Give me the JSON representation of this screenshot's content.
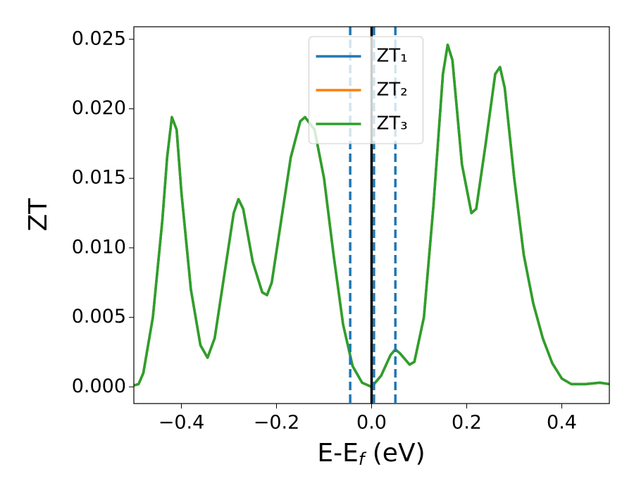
{
  "chart_data": {
    "type": "line",
    "xlabel": [
      "E-E",
      "f",
      " (eV)"
    ],
    "ylabel": "ZT",
    "xlim": [
      -0.5,
      0.5
    ],
    "ylim": [
      -0.0012,
      0.0259
    ],
    "xticks": [
      {
        "value": -0.4,
        "label": "−0.4"
      },
      {
        "value": -0.2,
        "label": "−0.2"
      },
      {
        "value": 0,
        "label": "0.0"
      },
      0.2,
      0.4
    ],
    "yticks": [
      {
        "value": 0,
        "label": "0.000"
      },
      0.005,
      {
        "value": 0.01,
        "label": "0.010"
      },
      0.015,
      {
        "value": 0.02,
        "label": "0.020"
      },
      0.025
    ],
    "legend": "upper center",
    "x": [
      -0.5,
      -0.49,
      -0.48,
      -0.46,
      -0.44,
      -0.43,
      -0.42,
      -0.41,
      -0.4,
      -0.38,
      -0.36,
      -0.345,
      -0.33,
      -0.31,
      -0.29,
      -0.28,
      -0.27,
      -0.25,
      -0.23,
      -0.22,
      -0.21,
      -0.19,
      -0.17,
      -0.15,
      -0.14,
      -0.12,
      -0.1,
      -0.08,
      -0.06,
      -0.04,
      -0.02,
      0,
      0.02,
      0.04,
      0.05,
      0.06,
      0.08,
      0.09,
      0.11,
      0.13,
      0.15,
      0.16,
      0.17,
      0.19,
      0.21,
      0.22,
      0.24,
      0.26,
      0.27,
      0.28,
      0.3,
      0.32,
      0.34,
      0.36,
      0.38,
      0.4,
      0.42,
      0.45,
      0.48,
      0.5
    ],
    "series": [
      {
        "name": "ZT₁",
        "color": "#1f77b4",
        "values": [
          0.0001,
          0.0002,
          0.001,
          0.005,
          0.012,
          0.0165,
          0.0194,
          0.0185,
          0.014,
          0.007,
          0.003,
          0.0021,
          0.0035,
          0.008,
          0.0125,
          0.0135,
          0.0128,
          0.009,
          0.0068,
          0.0066,
          0.0075,
          0.012,
          0.0165,
          0.0191,
          0.0194,
          0.0185,
          0.015,
          0.0095,
          0.0045,
          0.0015,
          0.0003,
          0,
          0.0008,
          0.0023,
          0.0027,
          0.0024,
          0.0016,
          0.0018,
          0.005,
          0.013,
          0.0225,
          0.0246,
          0.0235,
          0.016,
          0.0125,
          0.0128,
          0.0175,
          0.0225,
          0.023,
          0.0215,
          0.015,
          0.0095,
          0.006,
          0.0035,
          0.0017,
          0.0006,
          0.0002,
          0.0002,
          0.0003,
          0.0002
        ]
      },
      {
        "name": "ZT₂",
        "color": "#ff7f0e",
        "values": [
          0.0001,
          0.0002,
          0.001,
          0.005,
          0.012,
          0.0165,
          0.0194,
          0.0185,
          0.014,
          0.007,
          0.003,
          0.0021,
          0.0035,
          0.008,
          0.0125,
          0.0135,
          0.0128,
          0.009,
          0.0068,
          0.0066,
          0.0075,
          0.012,
          0.0165,
          0.0191,
          0.0194,
          0.0185,
          0.015,
          0.0095,
          0.0045,
          0.0015,
          0.0003,
          0,
          0.0008,
          0.0023,
          0.0027,
          0.0024,
          0.0016,
          0.0018,
          0.005,
          0.013,
          0.0225,
          0.0246,
          0.0235,
          0.016,
          0.0125,
          0.0128,
          0.0175,
          0.0225,
          0.023,
          0.0215,
          0.015,
          0.0095,
          0.006,
          0.0035,
          0.0017,
          0.0006,
          0.0002,
          0.0002,
          0.0003,
          0.0002
        ]
      },
      {
        "name": "ZT₃",
        "color": "#2ca02c",
        "values": [
          0.0001,
          0.0002,
          0.001,
          0.005,
          0.012,
          0.0165,
          0.0194,
          0.0185,
          0.014,
          0.007,
          0.003,
          0.0021,
          0.0035,
          0.008,
          0.0125,
          0.0135,
          0.0128,
          0.009,
          0.0068,
          0.0066,
          0.0075,
          0.012,
          0.0165,
          0.0191,
          0.0194,
          0.0185,
          0.015,
          0.0095,
          0.0045,
          0.0015,
          0.0003,
          0,
          0.0008,
          0.0023,
          0.0027,
          0.0024,
          0.0016,
          0.0018,
          0.005,
          0.013,
          0.0225,
          0.0246,
          0.0235,
          0.016,
          0.0125,
          0.0128,
          0.0175,
          0.0225,
          0.023,
          0.0215,
          0.015,
          0.0095,
          0.006,
          0.0035,
          0.0017,
          0.0006,
          0.0002,
          0.0002,
          0.0003,
          0.0002
        ]
      }
    ],
    "vlines": [
      {
        "x": -0.045,
        "color": "#1f77b4",
        "style": "dashed"
      },
      {
        "x": 0,
        "color": "#000000",
        "style": "solid"
      },
      {
        "x": 0.005,
        "color": "#1f77b4",
        "style": "dashed"
      },
      {
        "x": 0.05,
        "color": "#1f77b4",
        "style": "dashed"
      }
    ]
  }
}
